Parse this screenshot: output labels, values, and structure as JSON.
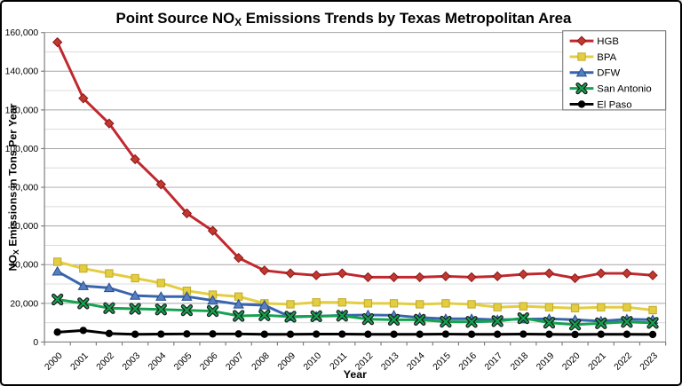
{
  "chart_data": {
    "type": "line",
    "title": {
      "pre": "Point Source NO",
      "sub": "X",
      "post": " Emissions Trends by Texas Metropolitan Area"
    },
    "x_axis": {
      "label": "Year",
      "categories": [
        "2000",
        "2001",
        "2002",
        "2003",
        "2004",
        "2005",
        "2006",
        "2007",
        "2008",
        "2009",
        "2010",
        "2011",
        "2012",
        "2013",
        "2014",
        "2015",
        "2016",
        "2017",
        "2018",
        "2019",
        "2020",
        "2021",
        "2022",
        "2023"
      ]
    },
    "y_axis": {
      "label": {
        "pre": "NO",
        "sub": "X",
        "post": " Emissions in Tons Per Year"
      },
      "min": 0,
      "max": 160000,
      "major_step": 20000,
      "minor_step": 10000,
      "tick_labels": [
        "0",
        "20,000",
        "40,000",
        "60,000",
        "80,000",
        "100,000",
        "120,000",
        "140,000",
        "160,000"
      ]
    },
    "legend": {
      "position": "top-right",
      "entries": [
        "HGB",
        "BPA",
        "DFW",
        "San Antonio",
        "El Paso"
      ]
    },
    "grid": {
      "major_color": "#A6A6A6",
      "minor_color": "#DCDCDC",
      "axis_color": "#7F7F7F"
    },
    "series": [
      {
        "name": "HGB",
        "marker": "diamond",
        "color": "#C0282E",
        "marker_fill": "#C0392F",
        "marker_stroke": "#8B161B",
        "values": [
          155000,
          126000,
          113000,
          94500,
          81500,
          66500,
          57500,
          43500,
          37000,
          35500,
          34500,
          35500,
          33500,
          33500,
          33500,
          34000,
          33500,
          34000,
          35000,
          35500,
          33000,
          35500,
          35500,
          34500
        ]
      },
      {
        "name": "BPA",
        "marker": "square",
        "color": "#E3CD40",
        "marker_fill": "#E3CD40",
        "marker_stroke": "#C0A928",
        "values": [
          41500,
          38000,
          35500,
          33000,
          30500,
          26500,
          24500,
          23500,
          20000,
          19500,
          20500,
          20500,
          20000,
          20000,
          19500,
          20000,
          19500,
          18000,
          18500,
          18000,
          17500,
          18000,
          18000,
          16500
        ]
      },
      {
        "name": "DFW",
        "marker": "triangle",
        "color": "#3865AE",
        "marker_fill": "#567FC1",
        "marker_stroke": "#274E8D",
        "values": [
          36500,
          29000,
          28000,
          24000,
          23500,
          23500,
          21500,
          19500,
          19000,
          13000,
          13300,
          13800,
          14000,
          13800,
          12700,
          12000,
          12000,
          11500,
          11800,
          12000,
          11500,
          10800,
          11800,
          11500
        ]
      },
      {
        "name": "San Antonio",
        "marker": "x",
        "color": "#14A24F",
        "marker_fill": "#14A24F",
        "marker_stroke": "#1A1A1A",
        "values": [
          22000,
          20000,
          17500,
          17200,
          16800,
          16400,
          16000,
          13500,
          13800,
          13100,
          13300,
          13600,
          11800,
          11500,
          11500,
          10500,
          10400,
          10800,
          12300,
          10000,
          9000,
          9700,
          10400,
          9900
        ]
      },
      {
        "name": "El Paso",
        "marker": "circle",
        "color": "#000000",
        "marker_fill": "#000000",
        "marker_stroke": "#000000",
        "values": [
          5100,
          6000,
          4400,
          4000,
          4100,
          4200,
          4200,
          4200,
          4000,
          4000,
          4100,
          4100,
          4000,
          4000,
          4000,
          4100,
          4000,
          4000,
          4100,
          4000,
          3900,
          4000,
          4000,
          3900
        ]
      }
    ]
  }
}
